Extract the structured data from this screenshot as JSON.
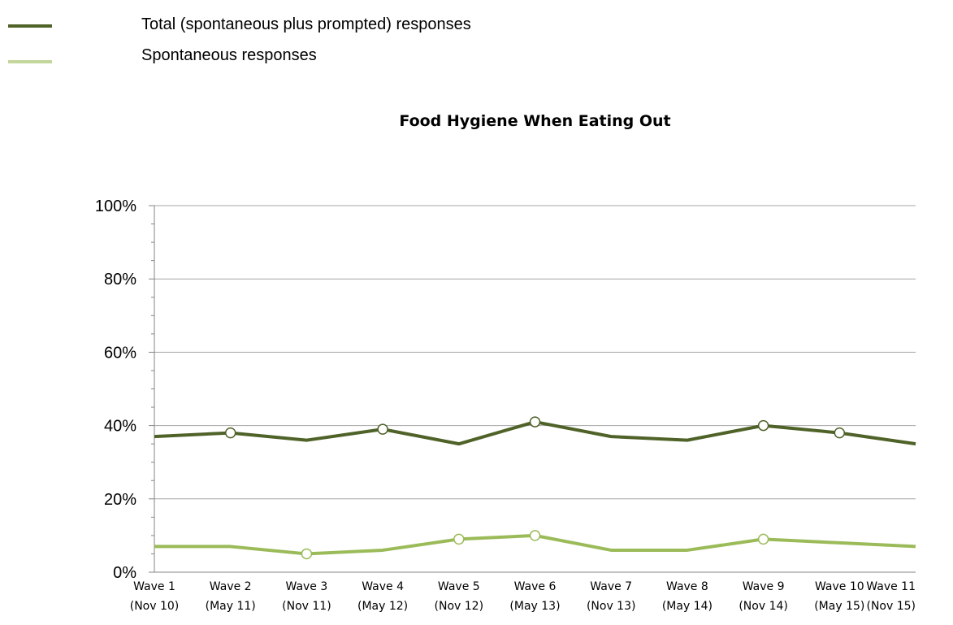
{
  "legend": {
    "items": [
      {
        "label": "Total (spontaneous plus prompted) responses",
        "color": "#4f6228"
      },
      {
        "label": "Spontaneous responses",
        "color": "#c3d69b"
      }
    ]
  },
  "chart_data": {
    "type": "line",
    "title": "Food Hygiene When Eating Out",
    "xlabel": "",
    "ylabel": "",
    "categories": [
      [
        "Wave 1",
        "(Nov 10)"
      ],
      [
        "Wave 2",
        "(May 11)"
      ],
      [
        "Wave 3",
        "(Nov 11)"
      ],
      [
        "Wave 4",
        "(May 12)"
      ],
      [
        "Wave 5",
        "(Nov 12)"
      ],
      [
        "Wave 6",
        "(May 13)"
      ],
      [
        "Wave 7",
        "(Nov 13)"
      ],
      [
        "Wave 8",
        "(May 14)"
      ],
      [
        "Wave 9",
        "(Nov 14)"
      ],
      [
        "Wave 10",
        "(May 15)"
      ],
      [
        "Wave 11",
        "(Nov 15)"
      ]
    ],
    "ylim": [
      0,
      100
    ],
    "yticks": [
      0,
      20,
      40,
      60,
      80,
      100
    ],
    "ytick_labels": [
      "0%",
      "20%",
      "40%",
      "60%",
      "80%",
      "100%"
    ],
    "grid": true,
    "legend_position": "top-left",
    "series": [
      {
        "name": "Total (spontaneous plus prompted) responses",
        "color": "#4f6228",
        "values": [
          37,
          38,
          36,
          39,
          35,
          41,
          37,
          36,
          40,
          38,
          35
        ],
        "markers": [
          false,
          true,
          false,
          true,
          false,
          true,
          false,
          false,
          true,
          true,
          false
        ]
      },
      {
        "name": "Spontaneous responses",
        "color": "#9bbb59",
        "values": [
          7,
          7,
          5,
          6,
          9,
          10,
          6,
          6,
          9,
          8,
          7
        ],
        "markers": [
          false,
          false,
          true,
          false,
          true,
          true,
          false,
          false,
          true,
          false,
          false
        ]
      }
    ]
  }
}
